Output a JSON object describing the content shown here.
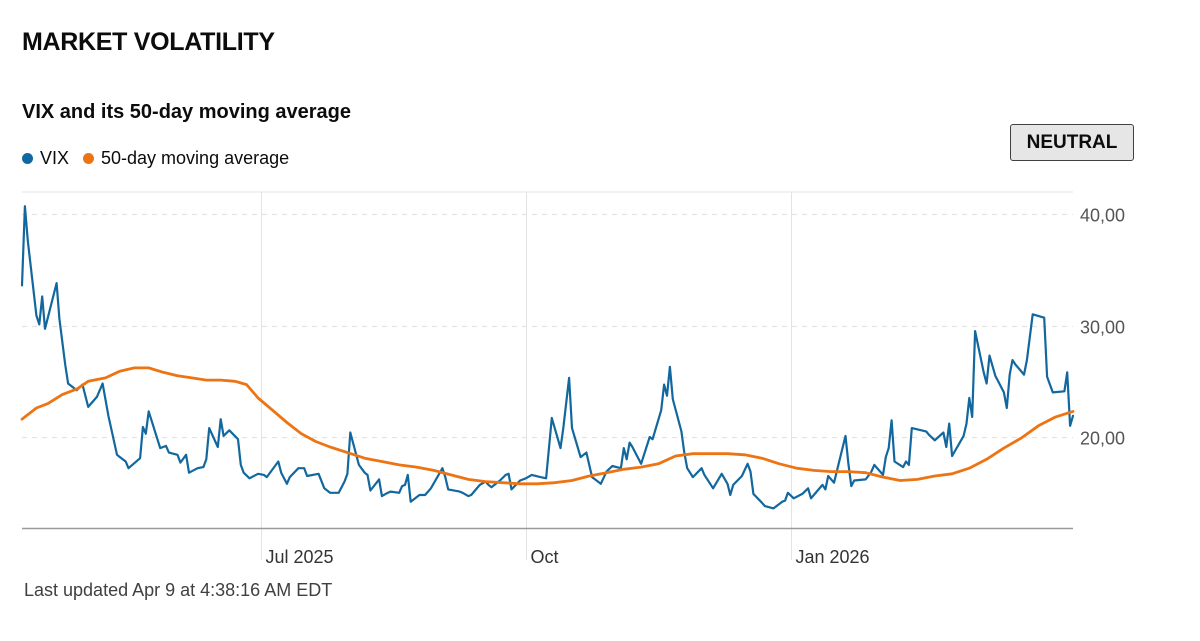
{
  "header": {
    "title": "MARKET VOLATILITY"
  },
  "chart_title": "VIX and its 50-day moving average",
  "status_badge": "NEUTRAL",
  "footer": {
    "updated": "Last updated Apr 9 at 4:38:16 AM EDT"
  },
  "colors": {
    "vix": "#12689e",
    "ma": "#ed7413",
    "grid": "#e3e3e3",
    "axis": "#9a9a9a",
    "text": "#0c0c0c"
  },
  "chart_data": {
    "type": "line",
    "title": "VIX and its 50-day moving average",
    "legend": "top-left",
    "x_tick_labels": [
      "Jul 2025",
      "Oct",
      "Jan 2026"
    ],
    "y_tick_labels": [
      "20,00",
      "30,00",
      "40,00"
    ],
    "y_ticks": [
      20,
      30,
      40
    ],
    "ylim": [
      12.5,
      42
    ],
    "grid": true,
    "x_range": [
      "2025-04-09",
      "2026-04-09"
    ],
    "x_ticks": [
      "2025-07-01",
      "2025-10-01",
      "2026-01-01"
    ],
    "series": [
      {
        "name": "VIX",
        "color": "#12689e",
        "points": [
          [
            "2025-04-09",
            33.6
          ],
          [
            "2025-04-10",
            40.7
          ],
          [
            "2025-04-11",
            37.6
          ],
          [
            "2025-04-14",
            30.9
          ],
          [
            "2025-04-15",
            30.1
          ],
          [
            "2025-04-16",
            32.6
          ],
          [
            "2025-04-17",
            29.7
          ],
          [
            "2025-04-21",
            33.8
          ],
          [
            "2025-04-22",
            30.6
          ],
          [
            "2025-04-24",
            26.5
          ],
          [
            "2025-04-25",
            24.8
          ],
          [
            "2025-04-28",
            24.2
          ],
          [
            "2025-04-30",
            24.7
          ],
          [
            "2025-05-02",
            22.7
          ],
          [
            "2025-05-05",
            23.6
          ],
          [
            "2025-05-07",
            24.8
          ],
          [
            "2025-05-09",
            21.9
          ],
          [
            "2025-05-12",
            18.4
          ],
          [
            "2025-05-13",
            18.2
          ],
          [
            "2025-05-15",
            17.8
          ],
          [
            "2025-05-16",
            17.2
          ],
          [
            "2025-05-20",
            18.1
          ],
          [
            "2025-05-21",
            20.9
          ],
          [
            "2025-05-22",
            20.3
          ],
          [
            "2025-05-23",
            22.3
          ],
          [
            "2025-05-27",
            19.0
          ],
          [
            "2025-05-29",
            19.2
          ],
          [
            "2025-05-30",
            18.6
          ],
          [
            "2025-06-02",
            18.4
          ],
          [
            "2025-06-03",
            17.7
          ],
          [
            "2025-06-05",
            18.4
          ],
          [
            "2025-06-06",
            16.8
          ],
          [
            "2025-06-09",
            17.2
          ],
          [
            "2025-06-11",
            17.3
          ],
          [
            "2025-06-12",
            18.0
          ],
          [
            "2025-06-13",
            20.8
          ],
          [
            "2025-06-16",
            19.1
          ],
          [
            "2025-06-17",
            21.6
          ],
          [
            "2025-06-18",
            20.1
          ],
          [
            "2025-06-20",
            20.6
          ],
          [
            "2025-06-23",
            19.8
          ],
          [
            "2025-06-24",
            17.5
          ],
          [
            "2025-06-25",
            16.8
          ],
          [
            "2025-06-27",
            16.3
          ],
          [
            "2025-06-30",
            16.7
          ],
          [
            "2025-07-02",
            16.6
          ],
          [
            "2025-07-03",
            16.4
          ],
          [
            "2025-07-07",
            17.8
          ],
          [
            "2025-07-08",
            16.8
          ],
          [
            "2025-07-10",
            15.8
          ],
          [
            "2025-07-11",
            16.4
          ],
          [
            "2025-07-14",
            17.2
          ],
          [
            "2025-07-16",
            17.2
          ],
          [
            "2025-07-17",
            16.5
          ],
          [
            "2025-07-21",
            16.7
          ],
          [
            "2025-07-23",
            15.4
          ],
          [
            "2025-07-25",
            15.0
          ],
          [
            "2025-07-28",
            15.0
          ],
          [
            "2025-07-30",
            16.0
          ],
          [
            "2025-07-31",
            16.7
          ],
          [
            "2025-08-01",
            20.4
          ],
          [
            "2025-08-04",
            17.5
          ],
          [
            "2025-08-06",
            16.8
          ],
          [
            "2025-08-07",
            16.6
          ],
          [
            "2025-08-08",
            15.2
          ],
          [
            "2025-08-11",
            16.2
          ],
          [
            "2025-08-12",
            14.7
          ],
          [
            "2025-08-14",
            15.0
          ],
          [
            "2025-08-15",
            15.1
          ],
          [
            "2025-08-18",
            15.0
          ],
          [
            "2025-08-19",
            15.6
          ],
          [
            "2025-08-20",
            15.7
          ],
          [
            "2025-08-21",
            16.6
          ],
          [
            "2025-08-22",
            14.2
          ],
          [
            "2025-08-25",
            14.8
          ],
          [
            "2025-08-27",
            14.8
          ],
          [
            "2025-08-29",
            15.4
          ],
          [
            "2025-09-02",
            17.2
          ],
          [
            "2025-09-03",
            16.4
          ],
          [
            "2025-09-04",
            15.3
          ],
          [
            "2025-09-08",
            15.1
          ],
          [
            "2025-09-09",
            15.0
          ],
          [
            "2025-09-11",
            14.7
          ],
          [
            "2025-09-12",
            14.8
          ],
          [
            "2025-09-15",
            15.7
          ],
          [
            "2025-09-17",
            16.0
          ],
          [
            "2025-09-18",
            15.7
          ],
          [
            "2025-09-19",
            15.5
          ],
          [
            "2025-09-22",
            16.1
          ],
          [
            "2025-09-24",
            16.6
          ],
          [
            "2025-09-25",
            16.7
          ],
          [
            "2025-09-26",
            15.3
          ],
          [
            "2025-09-29",
            16.1
          ],
          [
            "2025-10-01",
            16.3
          ],
          [
            "2025-10-03",
            16.6
          ],
          [
            "2025-10-06",
            16.4
          ],
          [
            "2025-10-08",
            16.3
          ],
          [
            "2025-10-10",
            21.7
          ],
          [
            "2025-10-13",
            19.0
          ],
          [
            "2025-10-14",
            20.8
          ],
          [
            "2025-10-16",
            25.3
          ],
          [
            "2025-10-17",
            20.8
          ],
          [
            "2025-10-20",
            18.2
          ],
          [
            "2025-10-22",
            18.6
          ],
          [
            "2025-10-24",
            16.4
          ],
          [
            "2025-10-27",
            15.8
          ],
          [
            "2025-10-29",
            16.9
          ],
          [
            "2025-10-31",
            17.4
          ],
          [
            "2025-11-03",
            17.2
          ],
          [
            "2025-11-04",
            19.0
          ],
          [
            "2025-11-05",
            18.0
          ],
          [
            "2025-11-06",
            19.5
          ],
          [
            "2025-11-07",
            19.1
          ],
          [
            "2025-11-10",
            17.6
          ],
          [
            "2025-11-13",
            20.0
          ],
          [
            "2025-11-14",
            19.8
          ],
          [
            "2025-11-17",
            22.4
          ],
          [
            "2025-11-18",
            24.7
          ],
          [
            "2025-11-19",
            23.7
          ],
          [
            "2025-11-20",
            26.3
          ],
          [
            "2025-11-21",
            23.4
          ],
          [
            "2025-11-24",
            20.5
          ],
          [
            "2025-11-25",
            18.6
          ],
          [
            "2025-11-26",
            17.2
          ],
          [
            "2025-11-28",
            16.4
          ],
          [
            "2025-12-01",
            17.2
          ],
          [
            "2025-12-02",
            16.6
          ],
          [
            "2025-12-04",
            15.8
          ],
          [
            "2025-12-05",
            15.4
          ],
          [
            "2025-12-08",
            16.7
          ],
          [
            "2025-12-10",
            15.8
          ],
          [
            "2025-12-11",
            14.8
          ],
          [
            "2025-12-12",
            15.7
          ],
          [
            "2025-12-15",
            16.5
          ],
          [
            "2025-12-17",
            17.6
          ],
          [
            "2025-12-18",
            16.9
          ],
          [
            "2025-12-19",
            14.9
          ],
          [
            "2025-12-22",
            14.1
          ],
          [
            "2025-12-23",
            13.8
          ],
          [
            "2025-12-26",
            13.6
          ],
          [
            "2025-12-29",
            14.2
          ],
          [
            "2025-12-30",
            14.3
          ],
          [
            "2025-12-31",
            15.0
          ],
          [
            "2026-01-02",
            14.5
          ],
          [
            "2026-01-05",
            14.9
          ],
          [
            "2026-01-07",
            15.4
          ],
          [
            "2026-01-08",
            14.5
          ],
          [
            "2026-01-09",
            14.8
          ],
          [
            "2026-01-12",
            15.7
          ],
          [
            "2026-01-13",
            15.3
          ],
          [
            "2026-01-14",
            16.5
          ],
          [
            "2026-01-16",
            15.9
          ],
          [
            "2026-01-20",
            20.1
          ],
          [
            "2026-01-21",
            17.6
          ],
          [
            "2026-01-22",
            15.6
          ],
          [
            "2026-01-23",
            16.1
          ],
          [
            "2026-01-27",
            16.2
          ],
          [
            "2026-01-29",
            16.9
          ],
          [
            "2026-01-30",
            17.5
          ],
          [
            "2026-02-02",
            16.6
          ],
          [
            "2026-02-03",
            18.2
          ],
          [
            "2026-02-04",
            19.0
          ],
          [
            "2026-02-05",
            21.5
          ],
          [
            "2026-02-06",
            17.8
          ],
          [
            "2026-02-09",
            17.3
          ],
          [
            "2026-02-10",
            17.8
          ],
          [
            "2026-02-11",
            17.5
          ],
          [
            "2026-02-12",
            20.8
          ],
          [
            "2026-02-17",
            20.5
          ],
          [
            "2026-02-18",
            20.2
          ],
          [
            "2026-02-20",
            19.7
          ],
          [
            "2026-02-23",
            20.4
          ],
          [
            "2026-02-24",
            19.1
          ],
          [
            "2026-02-25",
            21.2
          ],
          [
            "2026-02-26",
            18.3
          ],
          [
            "2026-03-02",
            20.1
          ],
          [
            "2026-03-03",
            21.2
          ],
          [
            "2026-03-04",
            23.5
          ],
          [
            "2026-03-05",
            21.8
          ],
          [
            "2026-03-06",
            29.5
          ],
          [
            "2026-03-09",
            25.8
          ],
          [
            "2026-03-10",
            24.8
          ],
          [
            "2026-03-11",
            27.3
          ],
          [
            "2026-03-13",
            25.5
          ],
          [
            "2026-03-16",
            24.0
          ],
          [
            "2026-03-17",
            22.6
          ],
          [
            "2026-03-18",
            25.6
          ],
          [
            "2026-03-19",
            26.9
          ],
          [
            "2026-03-20",
            26.5
          ],
          [
            "2026-03-23",
            25.6
          ],
          [
            "2026-03-24",
            26.9
          ],
          [
            "2026-03-26",
            31.0
          ],
          [
            "2026-03-30",
            30.7
          ],
          [
            "2026-03-31",
            25.4
          ],
          [
            "2026-04-02",
            24.0
          ],
          [
            "2026-04-06",
            24.1
          ],
          [
            "2026-04-07",
            25.8
          ],
          [
            "2026-04-08",
            21.0
          ],
          [
            "2026-04-09",
            21.9
          ]
        ]
      },
      {
        "name": "50-day moving average",
        "color": "#ed7413",
        "points": [
          [
            "2025-04-09",
            21.6
          ],
          [
            "2025-04-14",
            22.6
          ],
          [
            "2025-04-18",
            23.0
          ],
          [
            "2025-04-23",
            23.8
          ],
          [
            "2025-04-28",
            24.3
          ],
          [
            "2025-05-02",
            25.0
          ],
          [
            "2025-05-08",
            25.3
          ],
          [
            "2025-05-13",
            25.9
          ],
          [
            "2025-05-18",
            26.2
          ],
          [
            "2025-05-23",
            26.2
          ],
          [
            "2025-05-28",
            25.8
          ],
          [
            "2025-06-02",
            25.5
          ],
          [
            "2025-06-07",
            25.3
          ],
          [
            "2025-06-12",
            25.1
          ],
          [
            "2025-06-17",
            25.1
          ],
          [
            "2025-06-22",
            25.0
          ],
          [
            "2025-06-26",
            24.7
          ],
          [
            "2025-06-30",
            23.5
          ],
          [
            "2025-07-05",
            22.4
          ],
          [
            "2025-07-10",
            21.3
          ],
          [
            "2025-07-15",
            20.3
          ],
          [
            "2025-07-20",
            19.6
          ],
          [
            "2025-07-25",
            19.1
          ],
          [
            "2025-07-31",
            18.6
          ],
          [
            "2025-08-06",
            18.1
          ],
          [
            "2025-08-12",
            17.8
          ],
          [
            "2025-08-18",
            17.5
          ],
          [
            "2025-08-24",
            17.3
          ],
          [
            "2025-08-30",
            17.0
          ],
          [
            "2025-09-05",
            16.6
          ],
          [
            "2025-09-11",
            16.2
          ],
          [
            "2025-09-17",
            16.0
          ],
          [
            "2025-09-23",
            15.9
          ],
          [
            "2025-09-29",
            15.8
          ],
          [
            "2025-10-05",
            15.8
          ],
          [
            "2025-10-11",
            15.9
          ],
          [
            "2025-10-17",
            16.1
          ],
          [
            "2025-10-23",
            16.5
          ],
          [
            "2025-10-29",
            16.8
          ],
          [
            "2025-11-04",
            17.1
          ],
          [
            "2025-11-10",
            17.3
          ],
          [
            "2025-11-16",
            17.6
          ],
          [
            "2025-11-22",
            18.3
          ],
          [
            "2025-11-28",
            18.5
          ],
          [
            "2025-12-04",
            18.5
          ],
          [
            "2025-12-10",
            18.5
          ],
          [
            "2025-12-16",
            18.4
          ],
          [
            "2025-12-22",
            18.1
          ],
          [
            "2025-12-28",
            17.6
          ],
          [
            "2026-01-03",
            17.2
          ],
          [
            "2026-01-09",
            17.0
          ],
          [
            "2026-01-15",
            16.9
          ],
          [
            "2026-01-21",
            16.9
          ],
          [
            "2026-01-27",
            16.8
          ],
          [
            "2026-02-02",
            16.4
          ],
          [
            "2026-02-08",
            16.1
          ],
          [
            "2026-02-14",
            16.2
          ],
          [
            "2026-02-20",
            16.5
          ],
          [
            "2026-02-26",
            16.7
          ],
          [
            "2026-03-04",
            17.2
          ],
          [
            "2026-03-10",
            18.0
          ],
          [
            "2026-03-16",
            19.0
          ],
          [
            "2026-03-22",
            19.9
          ],
          [
            "2026-03-28",
            21.0
          ],
          [
            "2026-04-03",
            21.8
          ],
          [
            "2026-04-09",
            22.3
          ]
        ]
      }
    ]
  }
}
